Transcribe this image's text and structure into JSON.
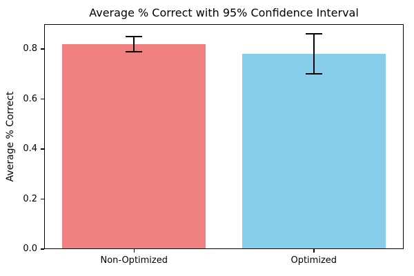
{
  "chart_data": {
    "type": "bar",
    "title": "Average % Correct with 95% Confidence Interval",
    "xlabel": "",
    "ylabel": "Average % Correct",
    "categories": [
      "Non-Optimized",
      "Optimized"
    ],
    "values": [
      0.82,
      0.78
    ],
    "error_95ci_halfwidth": [
      0.03,
      0.08
    ],
    "error_bar_ranges": [
      [
        0.79,
        0.85
      ],
      [
        0.7,
        0.86
      ]
    ],
    "bar_colors": [
      "#F08080",
      "#87CEEB"
    ],
    "error_color": "#000000",
    "axis_color": "#000000",
    "background_color": "#FFFFFF",
    "ytick_labels": [
      "0.0",
      "0.2",
      "0.4",
      "0.6",
      "0.8"
    ],
    "ytick_values": [
      0.0,
      0.2,
      0.4,
      0.6,
      0.8
    ],
    "ylim": [
      0,
      0.9
    ],
    "bar_width_fraction": 0.8,
    "grid": false,
    "legend_position": "none"
  }
}
